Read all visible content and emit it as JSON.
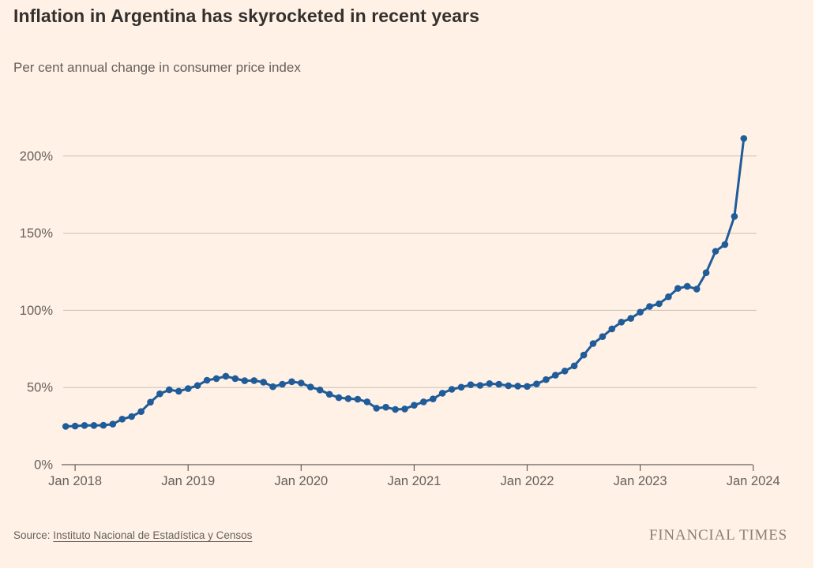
{
  "header": {
    "title": "Inflation in Argentina has skyrocketed in recent years",
    "subtitle": "Per cent annual change in consumer price index"
  },
  "footer": {
    "source_label": "Source:",
    "source_link": "Instituto Nacional de Estadística y Censos",
    "brand": "FINANCIAL TIMES"
  },
  "colors": {
    "background": "#fff1e5",
    "line": "#1f5c99",
    "gridline": "#ccc1b7",
    "axis": "#66605c",
    "tick_label": "#66605c"
  },
  "chart_data": {
    "type": "line",
    "title": "Inflation in Argentina has skyrocketed in recent years",
    "subtitle": "Per cent annual change in consumer price index",
    "xlabel": "",
    "ylabel": "Per cent annual change in consumer price index",
    "legend_position": "none",
    "grid": "horizontal",
    "marker": "circle",
    "ylim": [
      0,
      220
    ],
    "y_ticks": [
      0,
      50,
      100,
      150,
      200
    ],
    "y_tick_labels": [
      "0%",
      "50%",
      "100%",
      "150%",
      "200%"
    ],
    "x_tick_labels": [
      "Jan 2018",
      "Jan 2019",
      "Jan 2020",
      "Jan 2021",
      "Jan 2022",
      "Jan 2023",
      "Jan 2024"
    ],
    "series": [
      {
        "name": "Argentina consumer price index, % annual change",
        "x": [
          "Dec 2017",
          "Jan 2018",
          "Feb 2018",
          "Mar 2018",
          "Apr 2018",
          "May 2018",
          "Jun 2018",
          "Jul 2018",
          "Aug 2018",
          "Sep 2018",
          "Oct 2018",
          "Nov 2018",
          "Dec 2018",
          "Jan 2019",
          "Feb 2019",
          "Mar 2019",
          "Apr 2019",
          "May 2019",
          "Jun 2019",
          "Jul 2019",
          "Aug 2019",
          "Sep 2019",
          "Oct 2019",
          "Nov 2019",
          "Dec 2019",
          "Jan 2020",
          "Feb 2020",
          "Mar 2020",
          "Apr 2020",
          "May 2020",
          "Jun 2020",
          "Jul 2020",
          "Aug 2020",
          "Sep 2020",
          "Oct 2020",
          "Nov 2020",
          "Dec 2020",
          "Jan 2021",
          "Feb 2021",
          "Mar 2021",
          "Apr 2021",
          "May 2021",
          "Jun 2021",
          "Jul 2021",
          "Aug 2021",
          "Sep 2021",
          "Oct 2021",
          "Nov 2021",
          "Dec 2021",
          "Jan 2022",
          "Feb 2022",
          "Mar 2022",
          "Apr 2022",
          "May 2022",
          "Jun 2022",
          "Jul 2022",
          "Aug 2022",
          "Sep 2022",
          "Oct 2022",
          "Nov 2022",
          "Dec 2022",
          "Jan 2023",
          "Feb 2023",
          "Mar 2023",
          "Apr 2023",
          "May 2023",
          "Jun 2023",
          "Jul 2023",
          "Aug 2023",
          "Sep 2023",
          "Oct 2023",
          "Nov 2023",
          "Dec 2023"
        ],
        "values": [
          24.8,
          25.0,
          25.4,
          25.4,
          25.5,
          26.3,
          29.5,
          31.2,
          34.4,
          40.5,
          45.9,
          48.5,
          47.6,
          49.3,
          51.3,
          54.7,
          55.8,
          57.3,
          55.8,
          54.4,
          54.5,
          53.5,
          50.5,
          52.1,
          53.8,
          52.9,
          50.3,
          48.4,
          45.6,
          43.4,
          42.8,
          42.4,
          40.7,
          36.6,
          37.2,
          35.8,
          36.1,
          38.5,
          40.7,
          42.6,
          46.3,
          48.8,
          50.2,
          51.8,
          51.4,
          52.5,
          52.1,
          51.2,
          50.9,
          50.7,
          52.3,
          55.1,
          58.0,
          60.7,
          64.0,
          71.0,
          78.5,
          83.0,
          88.0,
          92.4,
          94.8,
          98.8,
          102.5,
          104.3,
          108.8,
          114.2,
          115.6,
          113.8,
          124.4,
          138.3,
          142.7,
          160.9,
          211.4
        ]
      }
    ]
  }
}
